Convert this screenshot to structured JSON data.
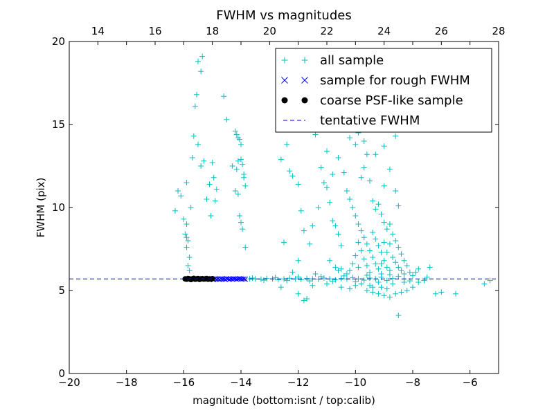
{
  "chart_data": {
    "type": "scatter",
    "title": "FWHM vs magnitudes",
    "xlabel": "magnitude (bottom:isnt / top:calib)",
    "ylabel": "FWHM (pix)",
    "xlim": [
      -20,
      -5
    ],
    "ylim": [
      0,
      20
    ],
    "top_xlim": [
      13.0,
      28.0
    ],
    "x_ticks": [
      -20,
      -18,
      -16,
      -14,
      -12,
      -10,
      -8,
      -6
    ],
    "x_tick_labels": [
      "−20",
      "−18",
      "−16",
      "−14",
      "−12",
      "−10",
      "−8",
      "−6"
    ],
    "top_ticks": [
      14,
      16,
      18,
      20,
      22,
      24,
      26,
      28
    ],
    "top_tick_labels": [
      "14",
      "16",
      "18",
      "20",
      "22",
      "24",
      "26",
      "28"
    ],
    "y_ticks": [
      0,
      5,
      10,
      15,
      20
    ],
    "y_tick_labels": [
      "0",
      "5",
      "10",
      "15",
      "20"
    ],
    "legend_position": "top-right",
    "colors": {
      "all": "#00bfbf",
      "rough": "#0000ff",
      "coarse": "#000000",
      "line": "#0000ff"
    },
    "tentative_fwhm": 5.7,
    "series": [
      {
        "name": "all sample",
        "marker": "plus",
        "points": [
          [
            -16.2,
            11.0
          ],
          [
            -16.1,
            10.7
          ],
          [
            -16.3,
            9.8
          ],
          [
            -16.0,
            9.3
          ],
          [
            -15.9,
            9.0
          ],
          [
            -15.95,
            8.4
          ],
          [
            -15.9,
            8.2
          ],
          [
            -15.85,
            8.0
          ],
          [
            -15.9,
            7.6
          ],
          [
            -15.8,
            7.0
          ],
          [
            -15.85,
            6.5
          ],
          [
            -15.8,
            6.2
          ],
          [
            -15.75,
            10.0
          ],
          [
            -15.9,
            11.5
          ],
          [
            -15.7,
            13.0
          ],
          [
            -15.65,
            14.3
          ],
          [
            -15.6,
            16.1
          ],
          [
            -15.55,
            16.8
          ],
          [
            -15.5,
            18.8
          ],
          [
            -15.4,
            18.2
          ],
          [
            -15.35,
            19.1
          ],
          [
            -15.5,
            13.8
          ],
          [
            -15.4,
            12.5
          ],
          [
            -15.3,
            12.8
          ],
          [
            -15.2,
            10.5
          ],
          [
            -15.1,
            11.4
          ],
          [
            -15.05,
            9.5
          ],
          [
            -15.0,
            12.7
          ],
          [
            -14.95,
            11.8
          ],
          [
            -14.9,
            10.4
          ],
          [
            -14.85,
            11.1
          ],
          [
            -14.6,
            16.7
          ],
          [
            -14.5,
            15.3
          ],
          [
            -14.3,
            12.5
          ],
          [
            -14.2,
            14.6
          ],
          [
            -14.15,
            14.4
          ],
          [
            -14.1,
            14.2
          ],
          [
            -14.05,
            14.1
          ],
          [
            -14.0,
            13.8
          ],
          [
            -14.1,
            12.8
          ],
          [
            -14.15,
            12.3
          ],
          [
            -14.0,
            12.9
          ],
          [
            -13.95,
            12.6
          ],
          [
            -13.9,
            11.8
          ],
          [
            -13.85,
            11.3
          ],
          [
            -14.2,
            11.0
          ],
          [
            -14.1,
            10.8
          ],
          [
            -14.05,
            9.5
          ],
          [
            -14.0,
            9.1
          ],
          [
            -13.95,
            8.7
          ],
          [
            -13.85,
            7.6
          ],
          [
            -13.9,
            12.0
          ],
          [
            -12.6,
            12.9
          ],
          [
            -12.4,
            13.8
          ],
          [
            -12.3,
            12.2
          ],
          [
            -12.2,
            11.9
          ],
          [
            -12.0,
            11.4
          ],
          [
            -11.9,
            9.8
          ],
          [
            -11.8,
            8.6
          ],
          [
            -11.6,
            7.8
          ],
          [
            -12.5,
            7.9
          ],
          [
            -12.0,
            6.8
          ],
          [
            -11.4,
            14.4
          ],
          [
            -11.2,
            12.4
          ],
          [
            -11.1,
            11.5
          ],
          [
            -11.0,
            11.2
          ],
          [
            -10.9,
            10.3
          ],
          [
            -10.8,
            9.2
          ],
          [
            -10.7,
            8.9
          ],
          [
            -10.6,
            8.4
          ],
          [
            -10.5,
            7.7
          ],
          [
            -10.9,
            6.8
          ],
          [
            -10.7,
            6.4
          ],
          [
            -10.5,
            6.3
          ],
          [
            -11.3,
            10.0
          ],
          [
            -11.5,
            8.9
          ],
          [
            -11.0,
            13.4
          ],
          [
            -10.8,
            12.0
          ],
          [
            -10.6,
            13.0
          ],
          [
            -10.4,
            12.1
          ],
          [
            -10.3,
            11.0
          ],
          [
            -10.2,
            10.5
          ],
          [
            -10.1,
            10.0
          ],
          [
            -10.0,
            9.5
          ],
          [
            -9.9,
            9.0
          ],
          [
            -9.8,
            8.6
          ],
          [
            -9.7,
            8.2
          ],
          [
            -9.6,
            7.8
          ],
          [
            -9.5,
            7.4
          ],
          [
            -9.4,
            7.0
          ],
          [
            -9.3,
            6.6
          ],
          [
            -9.2,
            6.3
          ],
          [
            -9.1,
            6.0
          ],
          [
            -9.0,
            6.8
          ],
          [
            -8.9,
            7.3
          ],
          [
            -8.8,
            7.8
          ],
          [
            -8.7,
            7.0
          ],
          [
            -8.6,
            6.7
          ],
          [
            -8.5,
            6.4
          ],
          [
            -8.4,
            6.2
          ],
          [
            -8.3,
            6.0
          ],
          [
            -9.8,
            11.8
          ],
          [
            -9.7,
            12.4
          ],
          [
            -9.6,
            13.2
          ],
          [
            -9.5,
            11.6
          ],
          [
            -9.4,
            10.4
          ],
          [
            -9.3,
            9.9
          ],
          [
            -9.2,
            10.2
          ],
          [
            -9.1,
            9.6
          ],
          [
            -9.0,
            9.1
          ],
          [
            -8.9,
            8.7
          ],
          [
            -8.8,
            9.0
          ],
          [
            -8.7,
            8.4
          ],
          [
            -8.6,
            8.0
          ],
          [
            -8.5,
            7.6
          ],
          [
            -8.4,
            7.2
          ],
          [
            -8.3,
            6.8
          ],
          [
            -8.2,
            6.5
          ],
          [
            -8.1,
            6.1
          ],
          [
            -9.9,
            7.9
          ],
          [
            -9.8,
            7.4
          ],
          [
            -9.7,
            6.9
          ],
          [
            -9.6,
            6.5
          ],
          [
            -9.5,
            6.1
          ],
          [
            -9.4,
            8.5
          ],
          [
            -9.3,
            8.1
          ],
          [
            -9.2,
            7.7
          ],
          [
            -9.1,
            7.3
          ],
          [
            -9.0,
            7.9
          ],
          [
            -8.9,
            6.4
          ],
          [
            -8.8,
            6.2
          ],
          [
            -10.0,
            13.8
          ],
          [
            -9.9,
            14.5
          ],
          [
            -9.7,
            14.0
          ],
          [
            -9.5,
            15.0
          ],
          [
            -9.3,
            13.2
          ],
          [
            -9.0,
            11.3
          ],
          [
            -8.8,
            12.3
          ],
          [
            -8.6,
            11.0
          ],
          [
            -8.5,
            10.1
          ],
          [
            -9.6,
            17.2
          ],
          [
            -9.4,
            16.5
          ],
          [
            -9.2,
            14.8
          ],
          [
            -9.0,
            13.7
          ],
          [
            -8.6,
            14.3
          ],
          [
            -10.2,
            14.2
          ],
          [
            -10.4,
            15.6
          ],
          [
            -10.6,
            16.8
          ],
          [
            -10.8,
            17.1
          ],
          [
            -9.8,
            16.1
          ],
          [
            -9.1,
            15.8
          ],
          [
            -10.0,
            7.1
          ],
          [
            -10.1,
            6.6
          ],
          [
            -10.2,
            6.2
          ],
          [
            -10.3,
            6.0
          ],
          [
            -9.6,
            5.0
          ],
          [
            -9.4,
            4.9
          ],
          [
            -9.2,
            4.8
          ],
          [
            -9.0,
            4.7
          ],
          [
            -8.8,
            4.6
          ],
          [
            -8.6,
            4.8
          ],
          [
            -8.4,
            4.9
          ],
          [
            -8.2,
            5.0
          ],
          [
            -8.0,
            5.2
          ],
          [
            -7.8,
            5.5
          ],
          [
            -7.6,
            5.6
          ],
          [
            -7.5,
            5.8
          ],
          [
            -7.4,
            6.4
          ],
          [
            -7.2,
            4.8
          ],
          [
            -7.0,
            4.9
          ],
          [
            -6.5,
            4.8
          ],
          [
            -5.5,
            5.4
          ],
          [
            -5.3,
            5.6
          ],
          [
            -8.5,
            3.5
          ],
          [
            -11.8,
            4.4
          ],
          [
            -11.7,
            4.5
          ],
          [
            -12.0,
            4.8
          ],
          [
            -10.5,
            5.2
          ],
          [
            -10.0,
            5.3
          ],
          [
            -9.8,
            5.4
          ],
          [
            -9.5,
            5.3
          ],
          [
            -9.1,
            5.2
          ],
          [
            -8.7,
            5.4
          ],
          [
            -8.3,
            5.5
          ],
          [
            -8.0,
            5.9
          ],
          [
            -7.9,
            6.1
          ],
          [
            -7.8,
            6.3
          ],
          [
            -13.7,
            5.7
          ],
          [
            -13.5,
            5.7
          ],
          [
            -13.3,
            5.68
          ],
          [
            -13.1,
            5.72
          ],
          [
            -12.9,
            5.7
          ],
          [
            -12.7,
            5.65
          ],
          [
            -12.5,
            5.7
          ],
          [
            -12.3,
            5.74
          ],
          [
            -12.1,
            5.7
          ],
          [
            -11.9,
            5.66
          ],
          [
            -11.7,
            5.72
          ],
          [
            -11.5,
            5.7
          ],
          [
            -11.3,
            5.68
          ],
          [
            -11.1,
            5.75
          ],
          [
            -10.9,
            5.7
          ],
          [
            -10.7,
            5.64
          ],
          [
            -10.5,
            5.72
          ],
          [
            -10.3,
            5.7
          ],
          [
            -10.1,
            5.78
          ],
          [
            -9.9,
            5.7
          ],
          [
            -9.7,
            5.62
          ],
          [
            -9.5,
            5.75
          ],
          [
            -9.3,
            5.7
          ],
          [
            -9.1,
            5.8
          ],
          [
            -8.9,
            5.6
          ],
          [
            -8.7,
            5.72
          ],
          [
            -8.5,
            5.85
          ],
          [
            -8.3,
            5.7
          ],
          [
            -8.1,
            5.58
          ],
          [
            -13.6,
            5.75
          ],
          [
            -13.2,
            5.62
          ],
          [
            -12.8,
            5.78
          ],
          [
            -12.4,
            5.6
          ],
          [
            -12.0,
            5.82
          ],
          [
            -11.6,
            5.58
          ],
          [
            -11.2,
            5.84
          ],
          [
            -10.8,
            5.55
          ],
          [
            -10.4,
            5.88
          ],
          [
            -10.0,
            5.52
          ],
          [
            -9.6,
            5.92
          ],
          [
            -9.2,
            5.5
          ],
          [
            -8.8,
            5.95
          ],
          [
            -12.6,
            5.2
          ],
          [
            -11.5,
            5.3
          ],
          [
            -11.0,
            5.4
          ],
          [
            -10.2,
            5.1
          ],
          [
            -9.4,
            5.2
          ],
          [
            -8.9,
            5.1
          ],
          [
            -12.2,
            6.1
          ],
          [
            -11.4,
            6.0
          ],
          [
            -10.6,
            6.2
          ],
          [
            -9.9,
            6.4
          ],
          [
            -9.1,
            6.6
          ]
        ]
      },
      {
        "name": "sample for rough FWHM",
        "marker": "x",
        "points": [
          [
            -15.0,
            5.7
          ],
          [
            -14.95,
            5.65
          ],
          [
            -14.9,
            5.72
          ],
          [
            -14.85,
            5.68
          ],
          [
            -14.8,
            5.7
          ],
          [
            -14.75,
            5.66
          ],
          [
            -14.7,
            5.71
          ],
          [
            -14.65,
            5.69
          ],
          [
            -14.6,
            5.7
          ],
          [
            -14.55,
            5.67
          ],
          [
            -14.5,
            5.72
          ],
          [
            -14.45,
            5.7
          ],
          [
            -14.4,
            5.68
          ],
          [
            -14.35,
            5.7
          ],
          [
            -14.3,
            5.69
          ],
          [
            -14.25,
            5.71
          ],
          [
            -14.2,
            5.7
          ],
          [
            -14.15,
            5.68
          ],
          [
            -14.1,
            5.7
          ],
          [
            -14.05,
            5.72
          ],
          [
            -14.0,
            5.7
          ],
          [
            -13.95,
            5.69
          ],
          [
            -13.9,
            5.7
          ],
          [
            -13.85,
            5.68
          ]
        ]
      },
      {
        "name": "coarse PSF-like sample",
        "marker": "dot",
        "points": [
          [
            -15.95,
            5.7
          ],
          [
            -15.9,
            5.68
          ],
          [
            -15.85,
            5.72
          ],
          [
            -15.8,
            5.7
          ],
          [
            -15.75,
            5.66
          ],
          [
            -15.7,
            5.7
          ],
          [
            -15.65,
            5.73
          ],
          [
            -15.6,
            5.68
          ],
          [
            -15.55,
            5.7
          ],
          [
            -15.5,
            5.72
          ],
          [
            -15.45,
            5.67
          ],
          [
            -15.4,
            5.7
          ],
          [
            -15.35,
            5.71
          ],
          [
            -15.3,
            5.69
          ],
          [
            -15.25,
            5.7
          ],
          [
            -15.2,
            5.72
          ],
          [
            -15.15,
            5.68
          ],
          [
            -15.1,
            5.7
          ],
          [
            -15.05,
            5.69
          ],
          [
            -15.0,
            5.71
          ]
        ]
      },
      {
        "name": "tentative FWHM",
        "marker": "dashed-line",
        "value": 5.7
      }
    ]
  }
}
